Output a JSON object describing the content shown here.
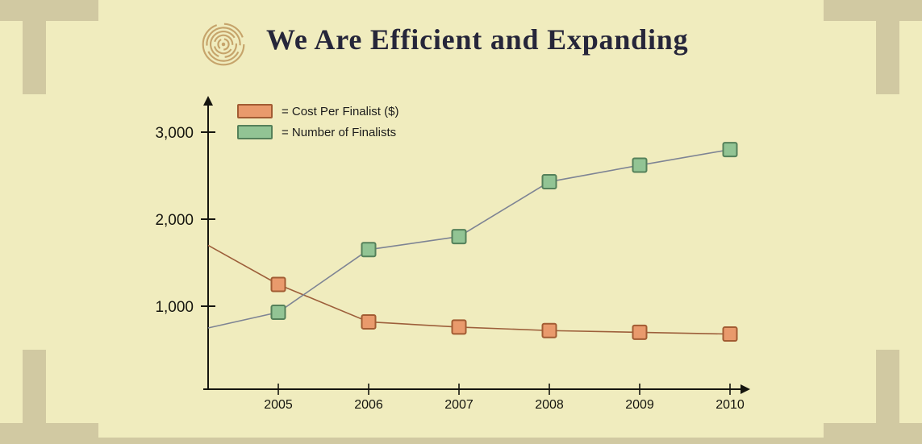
{
  "page": {
    "title": "We Are Efficient and Expanding",
    "background_color": "#f0ecbe",
    "decoration_color": "#d1c9a2"
  },
  "logo": {
    "icon": "labyrinth-logo",
    "color": "#c6a46b"
  },
  "chart_data": {
    "type": "line",
    "title": "We Are Efficient and Expanding",
    "xlabel": "",
    "ylabel": "",
    "x": [
      "2005",
      "2006",
      "2007",
      "2008",
      "2009",
      "2010"
    ],
    "yticks": [
      1000,
      2000,
      3000
    ],
    "ytick_labels": [
      "1,000",
      "2,000",
      "3,000"
    ],
    "ylim": [
      0,
      3300
    ],
    "grid": false,
    "legend_position": "top-left-inside",
    "axis_color": "#15150f",
    "series": [
      {
        "name": "Cost Per Finalist ($)",
        "legend_label": "= Cost Per Finalist ($)",
        "marker": "square",
        "marker_fill": "#e99a6c",
        "marker_stroke": "#a25c33",
        "line_color": "#9d5f3b",
        "axis_start_value": 1700,
        "values": [
          1250,
          820,
          760,
          720,
          700,
          680
        ]
      },
      {
        "name": "Number of Finalists",
        "legend_label": "= Number of Finalists",
        "marker": "square",
        "marker_fill": "#92c494",
        "marker_stroke": "#55815a",
        "line_color": "#7e8494",
        "axis_start_value": 750,
        "values": [
          930,
          1650,
          1800,
          2430,
          2620,
          2800
        ]
      }
    ]
  }
}
